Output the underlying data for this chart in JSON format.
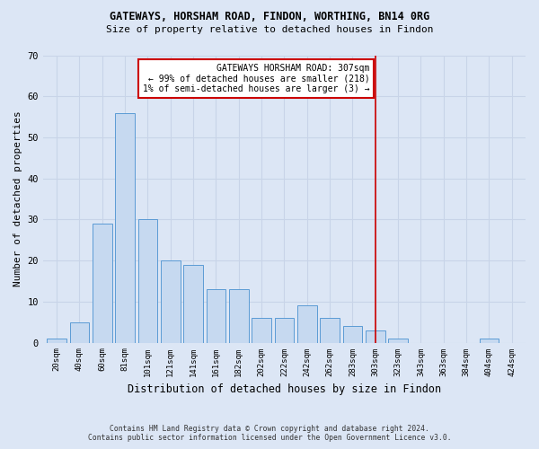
{
  "title1": "GATEWAYS, HORSHAM ROAD, FINDON, WORTHING, BN14 0RG",
  "title2": "Size of property relative to detached houses in Findon",
  "xlabel": "Distribution of detached houses by size in Findon",
  "ylabel": "Number of detached properties",
  "bar_labels": [
    "20sqm",
    "40sqm",
    "60sqm",
    "81sqm",
    "101sqm",
    "121sqm",
    "141sqm",
    "161sqm",
    "182sqm",
    "202sqm",
    "222sqm",
    "242sqm",
    "262sqm",
    "283sqm",
    "303sqm",
    "323sqm",
    "343sqm",
    "363sqm",
    "384sqm",
    "404sqm",
    "424sqm"
  ],
  "bar_values": [
    1,
    5,
    29,
    56,
    30,
    20,
    19,
    13,
    13,
    6,
    6,
    9,
    6,
    4,
    3,
    1,
    0,
    0,
    0,
    1,
    0
  ],
  "bar_color": "#c6d9f0",
  "bar_edge_color": "#5b9bd5",
  "ylim": [
    0,
    70
  ],
  "yticks": [
    0,
    10,
    20,
    30,
    40,
    50,
    60,
    70
  ],
  "vline_idx": 14,
  "vline_color": "#cc0000",
  "annotation_title": "GATEWAYS HORSHAM ROAD: 307sqm",
  "annotation_line2": "← 99% of detached houses are smaller (218)",
  "annotation_line3": "1% of semi-detached houses are larger (3) →",
  "annotation_box_color": "#cc0000",
  "footer1": "Contains HM Land Registry data © Crown copyright and database right 2024.",
  "footer2": "Contains public sector information licensed under the Open Government Licence v3.0.",
  "background_color": "#dce6f5",
  "grid_color": "#c8d4e8"
}
